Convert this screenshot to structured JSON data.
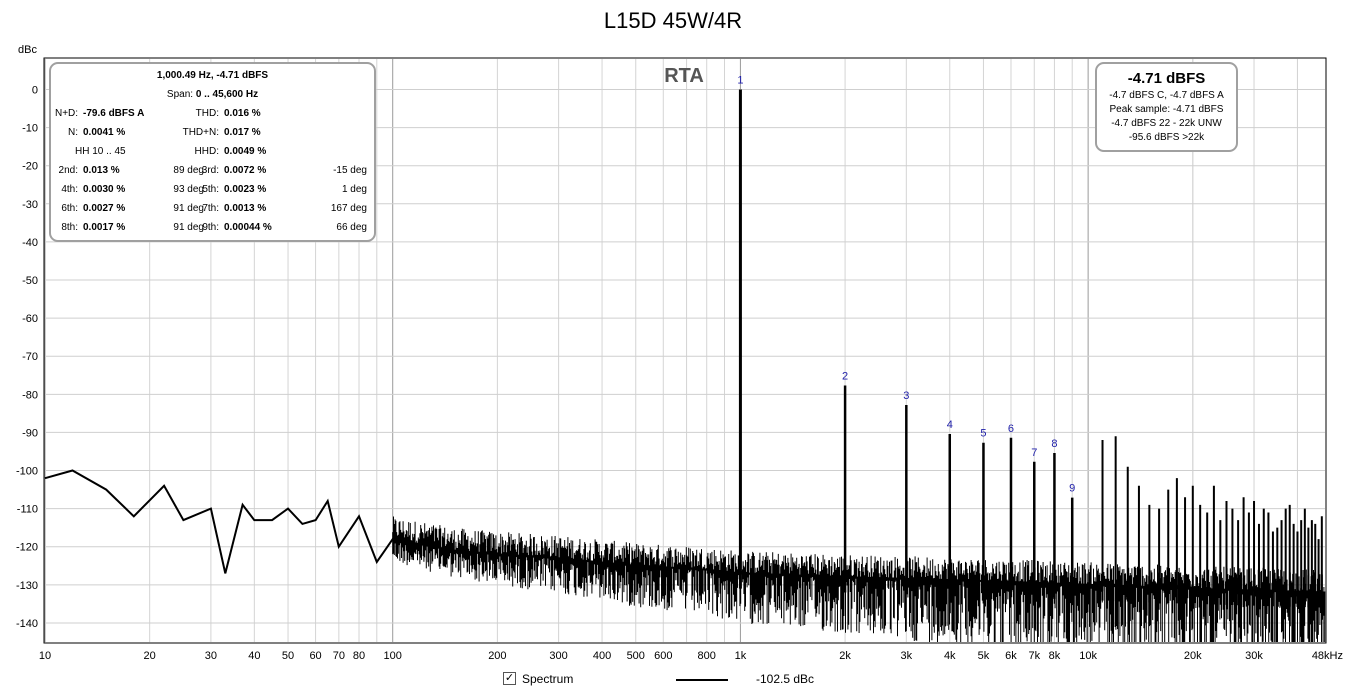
{
  "title": "L15D 45W/4R",
  "y_unit_label": "dBc",
  "rta_label": "RTA",
  "stats": {
    "header": "1,000.49 Hz, -4.71 dBFS",
    "span": {
      "label": "Span: ",
      "value": "0 .. 45,600 Hz"
    },
    "left_rows": [
      {
        "label": "N+D:",
        "value": "-79.6 dBFS A"
      },
      {
        "label": "N:",
        "value": "0.0041 %"
      },
      {
        "label": "HH 10 .. 45",
        "value": ""
      }
    ],
    "right_rows": [
      {
        "label": "THD:",
        "value": "0.016 %"
      },
      {
        "label": "THD+N:",
        "value": "0.017 %"
      },
      {
        "label": "HHD:",
        "value": "0.0049 %"
      }
    ],
    "harmonics": [
      {
        "l_label": "2nd:",
        "l_value": "0.013 %",
        "l_phase": "89 deg",
        "r_label": "3rd:",
        "r_value": "0.0072 %",
        "r_phase": "-15 deg"
      },
      {
        "l_label": "4th:",
        "l_value": "0.0030 %",
        "l_phase": "93 deg",
        "r_label": "5th:",
        "r_value": "0.0023 %",
        "r_phase": "1 deg"
      },
      {
        "l_label": "6th:",
        "l_value": "0.0027 %",
        "l_phase": "91 deg",
        "r_label": "7th:",
        "r_value": "0.0013 %",
        "r_phase": "167 deg"
      },
      {
        "l_label": "8th:",
        "l_value": "0.0017 %",
        "l_phase": "91 deg",
        "r_label": "9th:",
        "r_value": "0.00044 %",
        "r_phase": "66 deg"
      }
    ]
  },
  "level": {
    "main": "-4.71 dBFS",
    "lines": [
      "-4.7 dBFS C, -4.7 dBFS A",
      "Peak sample: -4.71 dBFS",
      "-4.7 dBFS 22 - 22k UNW",
      "-95.6 dBFS >22k"
    ]
  },
  "legend": {
    "checked": "✓",
    "label": "Spectrum",
    "value": "-102.5 dBc"
  },
  "chart_data": {
    "type": "line",
    "x_scale": "log",
    "xlim": [
      10,
      48000
    ],
    "ylim": [
      -145,
      8
    ],
    "y_ticks": [
      0,
      -10,
      -20,
      -30,
      -40,
      -50,
      -60,
      -70,
      -80,
      -90,
      -100,
      -110,
      -120,
      -130,
      -140
    ],
    "x_ticks": [
      {
        "v": 10,
        "label": "10"
      },
      {
        "v": 20,
        "label": "20"
      },
      {
        "v": 30,
        "label": "30"
      },
      {
        "v": 40,
        "label": "40"
      },
      {
        "v": 50,
        "label": "50"
      },
      {
        "v": 60,
        "label": "60"
      },
      {
        "v": 70,
        "label": "70"
      },
      {
        "v": 80,
        "label": "80"
      },
      {
        "v": 100,
        "label": "100"
      },
      {
        "v": 200,
        "label": "200"
      },
      {
        "v": 300,
        "label": "300"
      },
      {
        "v": 400,
        "label": "400"
      },
      {
        "v": 500,
        "label": "500"
      },
      {
        "v": 600,
        "label": "600"
      },
      {
        "v": 800,
        "label": "800"
      },
      {
        "v": 1000,
        "label": "1k"
      },
      {
        "v": 2000,
        "label": "2k"
      },
      {
        "v": 3000,
        "label": "3k"
      },
      {
        "v": 4000,
        "label": "4k"
      },
      {
        "v": 5000,
        "label": "5k"
      },
      {
        "v": 6000,
        "label": "6k"
      },
      {
        "v": 7000,
        "label": "7k"
      },
      {
        "v": 8000,
        "label": "8k"
      },
      {
        "v": 10000,
        "label": "10k"
      },
      {
        "v": 20000,
        "label": "20k"
      },
      {
        "v": 30000,
        "label": "30k"
      },
      {
        "v": 48000,
        "label": "48kHz"
      }
    ],
    "grid": true,
    "series": [
      {
        "name": "Spectrum",
        "color": "#000000"
      }
    ],
    "envelope": [
      [
        10,
        -102
      ],
      [
        12,
        -100
      ],
      [
        15,
        -105
      ],
      [
        18,
        -112
      ],
      [
        22,
        -104
      ],
      [
        25,
        -113
      ],
      [
        30,
        -110
      ],
      [
        33,
        -127
      ],
      [
        37,
        -109
      ],
      [
        40,
        -113
      ],
      [
        45,
        -113
      ],
      [
        50,
        -110
      ],
      [
        55,
        -114
      ],
      [
        60,
        -113
      ],
      [
        65,
        -108
      ],
      [
        70,
        -120
      ],
      [
        80,
        -112
      ],
      [
        90,
        -124
      ],
      [
        100,
        -118
      ],
      [
        150,
        -121
      ],
      [
        200,
        -122
      ],
      [
        300,
        -123
      ],
      [
        500,
        -125
      ],
      [
        800,
        -126
      ],
      [
        1000,
        -127
      ],
      [
        2000,
        -128
      ],
      [
        5000,
        -129
      ],
      [
        10000,
        -130
      ],
      [
        20000,
        -131
      ],
      [
        48000,
        -132
      ]
    ],
    "harmonic_peaks": [
      {
        "n": "1",
        "f": 1000,
        "db": 0
      },
      {
        "n": "2",
        "f": 2000,
        "db": -77.7
      },
      {
        "n": "3",
        "f": 3000,
        "db": -82.8
      },
      {
        "n": "4",
        "f": 4000,
        "db": -90.4
      },
      {
        "n": "5",
        "f": 5000,
        "db": -92.7
      },
      {
        "n": "6",
        "f": 6000,
        "db": -91.4
      },
      {
        "n": "7",
        "f": 7000,
        "db": -97.7
      },
      {
        "n": "8",
        "f": 8000,
        "db": -95.4
      },
      {
        "n": "9",
        "f": 9000,
        "db": -107.1
      }
    ],
    "higher_peaks": [
      [
        11000,
        -92
      ],
      [
        12000,
        -91
      ],
      [
        13000,
        -99
      ],
      [
        14000,
        -104
      ],
      [
        15000,
        -109
      ],
      [
        16000,
        -110
      ],
      [
        17000,
        -105
      ],
      [
        18000,
        -102
      ],
      [
        19000,
        -107
      ],
      [
        20000,
        -104
      ],
      [
        21000,
        -109
      ],
      [
        22000,
        -111
      ],
      [
        23000,
        -104
      ],
      [
        24000,
        -113
      ],
      [
        25000,
        -108
      ],
      [
        26000,
        -110
      ],
      [
        27000,
        -113
      ],
      [
        28000,
        -107
      ],
      [
        29000,
        -111
      ],
      [
        30000,
        -108
      ],
      [
        31000,
        -114
      ],
      [
        32000,
        -110
      ],
      [
        33000,
        -111
      ],
      [
        34000,
        -116
      ],
      [
        35000,
        -115
      ],
      [
        36000,
        -113
      ],
      [
        37000,
        -110
      ],
      [
        38000,
        -109
      ],
      [
        39000,
        -114
      ],
      [
        40000,
        -116
      ],
      [
        41000,
        -113
      ],
      [
        42000,
        -110
      ],
      [
        43000,
        -115
      ],
      [
        44000,
        -113
      ],
      [
        45000,
        -114
      ],
      [
        46000,
        -118
      ],
      [
        47000,
        -112
      ]
    ]
  }
}
